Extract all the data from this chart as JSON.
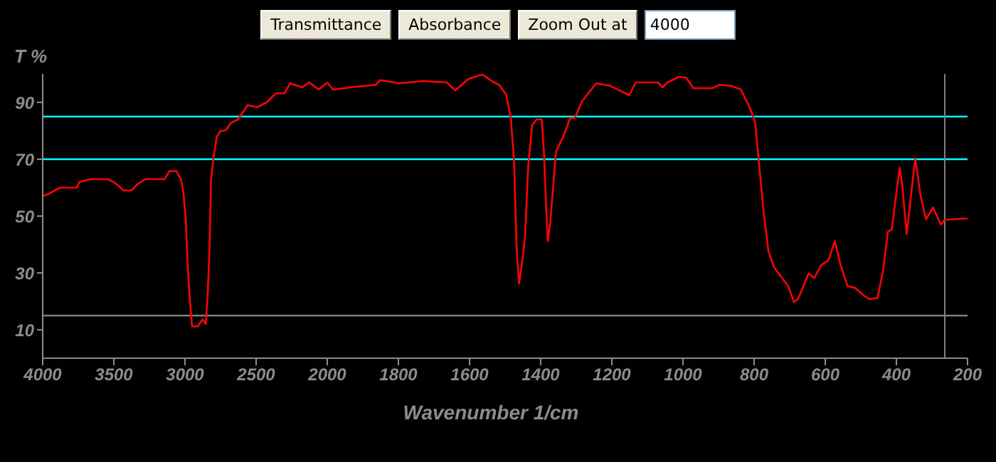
{
  "chart_data": [
    {
      "type": "line",
      "ylabel": "T %",
      "annotations": [
        "Transmittance",
        "Absorbance",
        "Zoom Out at",
        "4000"
      ],
      "x": [
        4000,
        3960,
        3877,
        3760,
        3743,
        3660,
        3543,
        3493,
        3460,
        3433,
        3377,
        3327,
        3277,
        3143,
        3110,
        3060,
        3027,
        3010,
        2993,
        2983,
        2967,
        2950,
        2910,
        2877,
        2853,
        2840,
        2827,
        2817,
        2800,
        2777,
        2753,
        2710,
        2677,
        2627,
        2560,
        2493,
        2427,
        2360,
        2300,
        2260,
        2177,
        2127,
        2060,
        2000
      ],
      "series": [
        {
          "color": "#ff0000",
          "values": [
            57,
            57.8,
            60,
            60,
            62,
            63,
            63,
            61.7,
            60.3,
            59,
            59,
            61.5,
            63,
            63,
            65.8,
            65.8,
            62.8,
            57.8,
            47.8,
            34.5,
            21.2,
            11.2,
            11.2,
            13.7,
            12,
            22.8,
            39.5,
            62.8,
            70.3,
            77.8,
            79.8,
            80.3,
            82.8,
            84,
            89,
            88.3,
            90,
            93.2,
            93.2,
            96.7,
            95.3,
            97,
            94.5,
            97
          ]
        }
      ],
      "xlim": [
        4000,
        2000
      ],
      "xticks": [
        4000,
        3500,
        3000,
        2500,
        2000
      ],
      "ylim": [
        0,
        100
      ],
      "yticks": [
        10,
        30,
        50,
        70,
        90
      ],
      "ref_lines": [
        {
          "axis": "y",
          "value": 85,
          "color": "#00ffff"
        },
        {
          "axis": "y",
          "value": 70,
          "color": "#00ffff"
        },
        {
          "axis": "y",
          "value": 15,
          "color": "#808080"
        }
      ],
      "grid": false,
      "legend": false,
      "marker": "none",
      "line_style": "solid"
    },
    {
      "type": "line",
      "xlabel": "Wavenumber 1/cm",
      "x": [
        2000,
        1984,
        1931,
        1864,
        1851,
        1797,
        1731,
        1664,
        1640,
        1604,
        1564,
        1531,
        1517,
        1497,
        1484,
        1475,
        1468,
        1461,
        1453,
        1444,
        1435,
        1424,
        1411,
        1397,
        1391,
        1384,
        1380,
        1373,
        1357,
        1337,
        1317,
        1304,
        1284,
        1244,
        1204,
        1171,
        1151,
        1133,
        1071,
        1057,
        1044,
        1011,
        991,
        971,
        917,
        897,
        864,
        837,
        811,
        797,
        787,
        773,
        760,
        744,
        724,
        704,
        688,
        677,
        664,
        647,
        631,
        611,
        591,
        573,
        557,
        537,
        517,
        491,
        477,
        453,
        437,
        424,
        413,
        391,
        384,
        371,
        357,
        347,
        333,
        317,
        297,
        275,
        264,
        200
      ],
      "series": [
        {
          "color": "#ff0000",
          "values": [
            97,
            94.5,
            95.3,
            96.2,
            97.8,
            96.7,
            97.5,
            97,
            94.2,
            98.2,
            99.8,
            97,
            96.2,
            92.8,
            84.5,
            69.5,
            39.5,
            26.2,
            32.8,
            42.8,
            67.8,
            82,
            84,
            84,
            72.8,
            51.2,
            41.2,
            47.8,
            72.8,
            77.8,
            84.5,
            84.5,
            90.3,
            96.7,
            95.8,
            93.7,
            92.5,
            97,
            97,
            95.3,
            97,
            99,
            98.7,
            95,
            95,
            96.2,
            95.8,
            94.5,
            87.8,
            82.8,
            69.5,
            51.2,
            37.8,
            32,
            28.7,
            25.3,
            19.8,
            20.8,
            24.5,
            29.8,
            28.2,
            32.8,
            34.5,
            41.2,
            32.8,
            25.3,
            24.8,
            22,
            20.8,
            21.2,
            31.2,
            44.5,
            45.3,
            67,
            61.2,
            43.7,
            59.5,
            70.3,
            57.8,
            48.8,
            53,
            47,
            48.7,
            49.2
          ]
        }
      ],
      "xlim": [
        2000,
        200
      ],
      "xticks": [
        1800,
        1600,
        1400,
        1200,
        1000,
        800,
        600,
        400,
        200
      ],
      "ylim": [
        0,
        100
      ],
      "tick_labels": "x",
      "ref_lines": [
        {
          "axis": "y",
          "value": 85,
          "color": "#00ffff"
        },
        {
          "axis": "y",
          "value": 70,
          "color": "#00ffff"
        },
        {
          "axis": "y",
          "value": 15,
          "color": "#808080"
        },
        {
          "axis": "x",
          "value": 264,
          "color": "#808080"
        }
      ],
      "grid": false,
      "legend": false,
      "marker": "none",
      "line_style": "solid"
    }
  ]
}
